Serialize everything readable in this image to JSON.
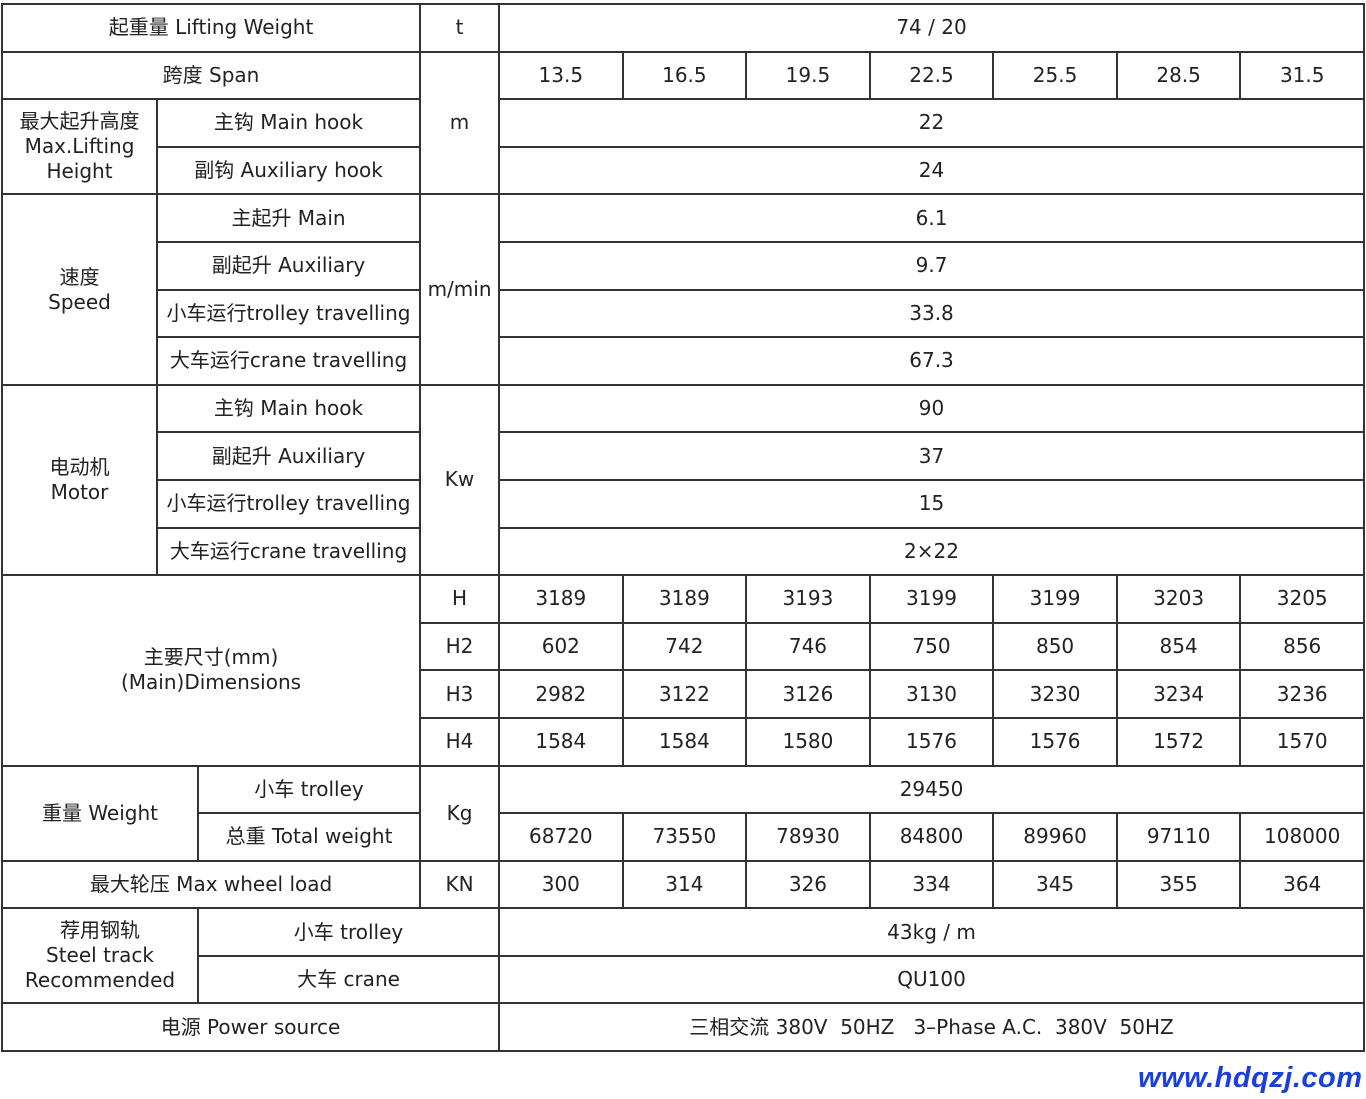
{
  "lifting_weight": {
    "label": "起重量 Lifting Weight",
    "unit": "t",
    "value": "74 / 20"
  },
  "span": {
    "label": "跨度 Span",
    "unit": "m",
    "values": [
      "13.5",
      "16.5",
      "19.5",
      "22.5",
      "25.5",
      "28.5",
      "31.5"
    ]
  },
  "max_lifting_height": {
    "label_cn": "最大起升高度",
    "label_en1": "Max.Lifting",
    "label_en2": "Height",
    "main_label": "主钩 Main hook",
    "main_value": "22",
    "aux_label": "副钩 Auxiliary hook",
    "aux_value": "24"
  },
  "speed": {
    "label_cn": "速度",
    "label_en": "Speed",
    "unit": "m/min",
    "rows": [
      {
        "label": "主起升 Main",
        "value": "6.1"
      },
      {
        "label": "副起升 Auxiliary",
        "value": "9.7"
      },
      {
        "label": "小车运行trolley travelling",
        "value": "33.8"
      },
      {
        "label": "大车运行crane travelling",
        "value": "67.3"
      }
    ]
  },
  "motor": {
    "label_cn": "电动机",
    "label_en": "Motor",
    "unit": "Kw",
    "rows": [
      {
        "label": "主钩 Main hook",
        "value": "90"
      },
      {
        "label": "副起升 Auxiliary",
        "value": "37"
      },
      {
        "label": "小车运行trolley travelling",
        "value": "15"
      },
      {
        "label": "大车运行crane travelling",
        "value": "2×22"
      }
    ]
  },
  "dimensions": {
    "label_cn": "主要尺寸(mm)",
    "label_en": "(Main)Dimensions",
    "rows": [
      {
        "label": "H",
        "values": [
          "3189",
          "3189",
          "3193",
          "3199",
          "3199",
          "3203",
          "3205"
        ]
      },
      {
        "label": "H2",
        "values": [
          "602",
          "742",
          "746",
          "750",
          "850",
          "854",
          "856"
        ]
      },
      {
        "label": "H3",
        "values": [
          "2982",
          "3122",
          "3126",
          "3130",
          "3230",
          "3234",
          "3236"
        ]
      },
      {
        "label": "H4",
        "values": [
          "1584",
          "1584",
          "1580",
          "1576",
          "1576",
          "1572",
          "1570"
        ]
      }
    ]
  },
  "weight": {
    "label": "重量 Weight",
    "unit": "Kg",
    "trolley_label": "小车 trolley",
    "trolley_value": "29450",
    "total_label": "总重 Total weight",
    "total_values": [
      "68720",
      "73550",
      "78930",
      "84800",
      "89960",
      "97110",
      "108000"
    ]
  },
  "wheel_load": {
    "label": "最大轮压 Max wheel load",
    "unit": "KN",
    "values": [
      "300",
      "314",
      "326",
      "334",
      "345",
      "355",
      "364"
    ]
  },
  "steel_track": {
    "label_cn": "荐用钢轨",
    "label_en1": "Steel track",
    "label_en2": "Recommended",
    "trolley_label": "小车 trolley",
    "trolley_value": "43kg / m",
    "crane_label": "大车 crane",
    "crane_value": "QU100"
  },
  "power": {
    "label": "电源 Power source",
    "value": "三相交流 380V  50HZ   3–Phase A.C.  380V  50HZ"
  },
  "watermark": "www.hdqzj.com"
}
